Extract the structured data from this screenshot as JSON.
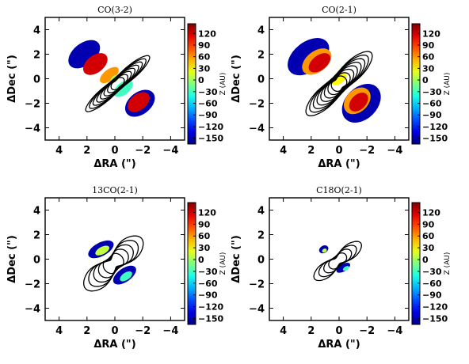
{
  "chart_data": [
    {
      "type": "contour",
      "title": "CO(3-2)",
      "xlabel": "ΔRA (\")",
      "ylabel": "ΔDec (\")",
      "xlim": [
        5,
        -5
      ],
      "ylim": [
        -5,
        5
      ],
      "xticks": [
        "4",
        "2",
        "0",
        "−2",
        "−4"
      ],
      "yticks": [
        "4",
        "2",
        "0",
        "−2",
        "−4"
      ],
      "colorbar": {
        "label": "Z (AU)",
        "range": [
          -165,
          145
        ],
        "ticks": [
          "120",
          "90",
          "60",
          "30",
          "0",
          "−30",
          "−60",
          "−90",
          "−120",
          "−150"
        ]
      },
      "velocity_field": [
        {
          "x": 2.0,
          "y": 1.8,
          "z": 120
        },
        {
          "x": 1.0,
          "y": 0.9,
          "z": 90
        },
        {
          "x": 0.0,
          "y": 0.0,
          "z": 0
        },
        {
          "x": -1.0,
          "y": -0.9,
          "z": -30
        },
        {
          "x": -2.0,
          "y": -2.0,
          "z": 120
        },
        {
          "x": 2.8,
          "y": 2.4,
          "z": -150
        },
        {
          "x": -2.6,
          "y": -2.6,
          "z": -150
        }
      ],
      "contour_levels": 8
    },
    {
      "type": "contour",
      "title": "CO(2-1)",
      "xlabel": "ΔRA (\")",
      "ylabel": "ΔDec (\")",
      "xlim": [
        5,
        -5
      ],
      "ylim": [
        -5,
        5
      ],
      "xticks": [
        "4",
        "2",
        "0",
        "−2",
        "−4"
      ],
      "yticks": [
        "4",
        "2",
        "0",
        "−2",
        "−4"
      ],
      "colorbar": {
        "label": "Z (AU)",
        "range": [
          -165,
          145
        ],
        "ticks": [
          "120",
          "90",
          "60",
          "30",
          "0",
          "−30",
          "−60",
          "−90",
          "−120",
          "−150"
        ]
      },
      "velocity_field": [
        {
          "x": 1.5,
          "y": 1.4,
          "z": 120
        },
        {
          "x": 2.6,
          "y": 2.2,
          "z": -150
        },
        {
          "x": 0.0,
          "y": 0.0,
          "z": 30
        },
        {
          "x": -1.5,
          "y": -1.8,
          "z": 120
        },
        {
          "x": -2.4,
          "y": -3.0,
          "z": -150
        }
      ],
      "contour_levels": 8
    },
    {
      "type": "contour",
      "title": "13CO(2-1)",
      "xlabel": "ΔRA (\")",
      "ylabel": "ΔDec (\")",
      "xlim": [
        5,
        -5
      ],
      "ylim": [
        -5,
        5
      ],
      "xticks": [
        "4",
        "2",
        "0",
        "−2",
        "−4"
      ],
      "yticks": [
        "4",
        "2",
        "0",
        "−2",
        "−4"
      ],
      "colorbar": {
        "label": "Z (AU)",
        "range": [
          -165,
          145
        ],
        "ticks": [
          "120",
          "90",
          "60",
          "30",
          "0",
          "−30",
          "−60",
          "−90",
          "−120",
          "−150"
        ]
      },
      "velocity_field": [
        {
          "x": 0.8,
          "y": 0.7,
          "z": 10
        },
        {
          "x": -0.8,
          "y": -1.4,
          "z": -30
        },
        {
          "x": 1.8,
          "y": 1.3,
          "z": -150
        },
        {
          "x": -1.5,
          "y": -2.0,
          "z": -150
        }
      ],
      "contour_levels": 5
    },
    {
      "type": "contour",
      "title": "C18O(2-1)",
      "xlabel": "ΔRA (\")",
      "ylabel": "ΔDec (\")",
      "xlim": [
        5,
        -5
      ],
      "ylim": [
        -5,
        5
      ],
      "xticks": [
        "4",
        "2",
        "0",
        "−2",
        "−4"
      ],
      "yticks": [
        "4",
        "2",
        "0",
        "−2",
        "−4"
      ],
      "colorbar": {
        "label": "Z (AU)",
        "range": [
          -165,
          145
        ],
        "ticks": [
          "120",
          "90",
          "60",
          "30",
          "0",
          "−30",
          "−60",
          "−90",
          "−120",
          "−150"
        ]
      },
      "velocity_field": [
        {
          "x": 1.0,
          "y": 0.6,
          "z": 10
        },
        {
          "x": -0.5,
          "y": -0.7,
          "z": -30
        },
        {
          "x": -1.0,
          "y": -1.0,
          "z": -150
        }
      ],
      "contour_levels": 4
    }
  ]
}
